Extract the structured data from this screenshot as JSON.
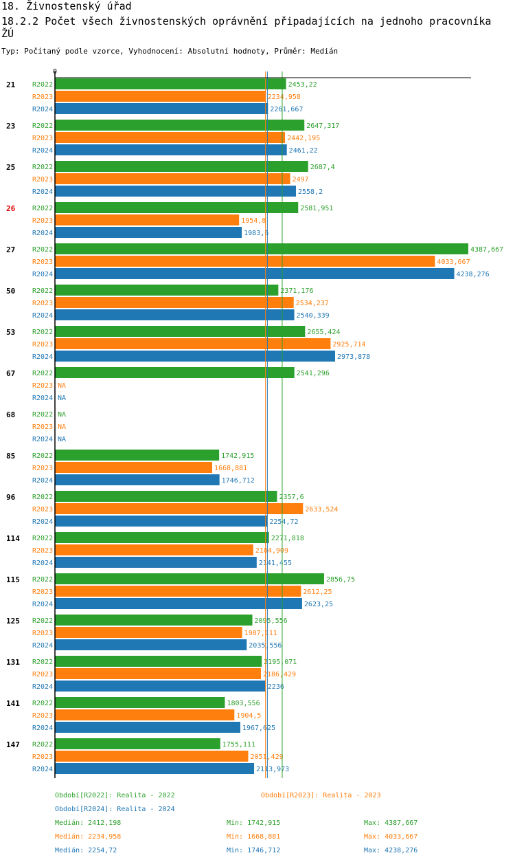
{
  "header": {
    "section": "18. Živnostenský úřad",
    "title": "18.2.2 Počet všech živnostenských oprávnění připadajících na jednoho pracovníka ŽÚ",
    "subtitle": "Typ: Počítaný podle vzorce, Vyhodnocení: Absolutní hodnoty, Průměr: Medián"
  },
  "chart_data": {
    "type": "bar",
    "orientation": "horizontal",
    "axis_zero_label": "0",
    "xlim": [
      0,
      4387.667
    ],
    "highlight_category": "26",
    "highlight_color": "#dd0000",
    "na_label": "NA",
    "categories": [
      "21",
      "23",
      "25",
      "26",
      "27",
      "50",
      "53",
      "67",
      "68",
      "85",
      "96",
      "114",
      "115",
      "125",
      "131",
      "141",
      "147"
    ],
    "series": [
      {
        "name": "R2022",
        "color": "#2ca02c",
        "values": [
          2453.22,
          2647.317,
          2687.4,
          2581.951,
          4387.667,
          2371.176,
          2655.424,
          2541.296,
          null,
          1742.915,
          2357.6,
          2271.818,
          2856.75,
          2095.556,
          2195.071,
          1803.556,
          1755.111
        ],
        "labels": [
          "2453,22",
          "2647,317",
          "2687,4",
          "2581,951",
          "4387,667",
          "2371,176",
          "2655,424",
          "2541,296",
          "NA",
          "1742,915",
          "2357,6",
          "2271,818",
          "2856,75",
          "2095,556",
          "2195,071",
          "1803,556",
          "1755,111"
        ]
      },
      {
        "name": "R2023",
        "color": "#ff7f0e",
        "values": [
          2234.958,
          2442.195,
          2497,
          1954.8,
          4033.667,
          2534.237,
          2925.714,
          null,
          null,
          1668.881,
          2633.524,
          2104.909,
          2612.25,
          1987.111,
          2186.429,
          1904.5,
          2051.429
        ],
        "labels": [
          "2234,958",
          "2442,195",
          "2497",
          "1954,8",
          "4033,667",
          "2534,237",
          "2925,714",
          "NA",
          "NA",
          "1668,881",
          "2633,524",
          "2104,909",
          "2612,25",
          "1987,111",
          "2186,429",
          "1904,5",
          "2051,429"
        ]
      },
      {
        "name": "R2024",
        "color": "#1f77b4",
        "values": [
          2261.667,
          2461.22,
          2558.2,
          1983.6,
          4238.276,
          2540.339,
          2973.878,
          null,
          null,
          1746.712,
          2254.72,
          2141.455,
          2623.25,
          2035.556,
          2236,
          1967.625,
          2113.973
        ],
        "labels": [
          "2261,667",
          "2461,22",
          "2558,2",
          "1983,6",
          "4238,276",
          "2540,339",
          "2973,878",
          "NA",
          "NA",
          "1746,712",
          "2254,72",
          "2141,455",
          "2623,25",
          "2035,556",
          "2236",
          "1967,625",
          "2113,973"
        ]
      }
    ],
    "reference_lines": [
      {
        "series": "R2022",
        "stat": "median",
        "value": 2412.198
      },
      {
        "series": "R2023",
        "stat": "median",
        "value": 2234.958
      },
      {
        "series": "R2024",
        "stat": "median",
        "value": 2254.72
      }
    ],
    "legend": {
      "periods": [
        {
          "text": "Období[R2022]: Realita - 2022",
          "color": "#2ca02c"
        },
        {
          "text": "Období[R2023]: Realita - 2023",
          "color": "#ff7f0e"
        },
        {
          "text": "Období[R2024]: Realita - 2024",
          "color": "#1f77b4"
        }
      ],
      "stats": [
        {
          "color": "#2ca02c",
          "median": "Medián: 2412,198",
          "min": "Min: 1742,915",
          "max": "Max: 4387,667"
        },
        {
          "color": "#ff7f0e",
          "median": "Medián: 2234,958",
          "min": "Min: 1668,881",
          "max": "Max: 4033,667"
        },
        {
          "color": "#1f77b4",
          "median": "Medián: 2254,72",
          "min": "Min: 1746,712",
          "max": "Max: 4238,276"
        }
      ]
    }
  }
}
